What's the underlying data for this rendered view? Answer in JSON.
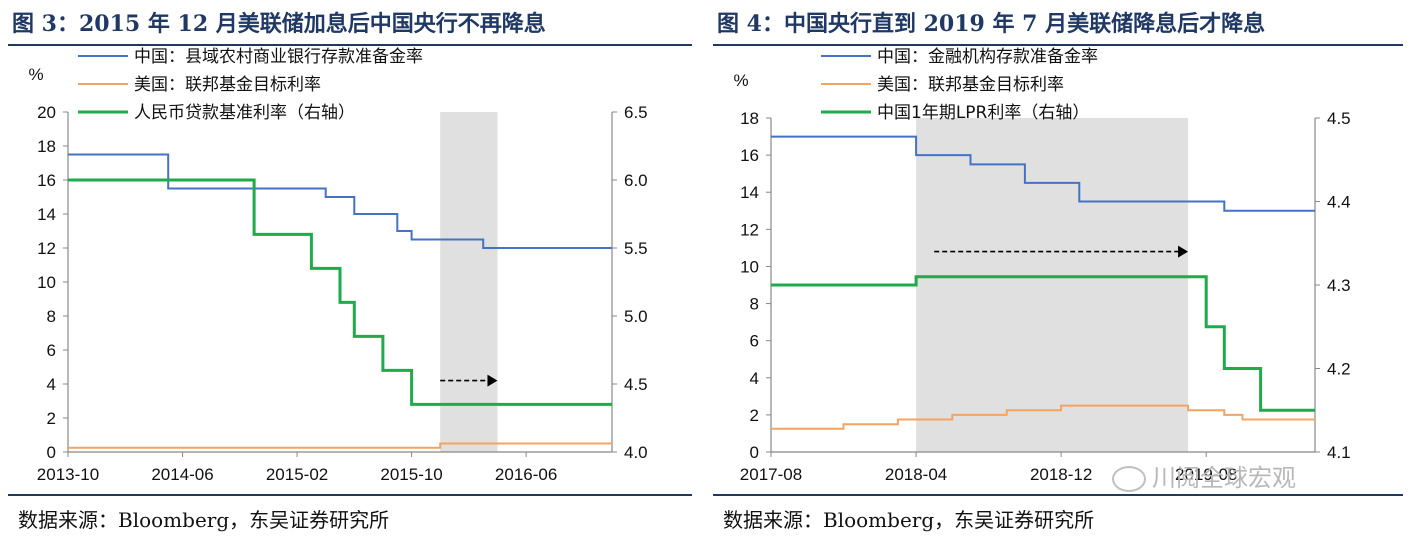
{
  "left": {
    "title": "图 3：2015 年 12 月美联储加息后中国央行不再降息",
    "source": "数据来源：Bloomberg，东吴证券研究所"
  },
  "right": {
    "title": "图 4：中国央行直到 2019 年 7 月美联储降息后才降息",
    "source": "数据来源：Bloomberg，东吴证券研究所"
  },
  "watermark": "川阅全球宏观",
  "colors": {
    "blue": "#4472C4",
    "orange": "#F4A460",
    "green": "#1FAA4B",
    "shade": "#E0E0E0",
    "title": "#1F3864"
  },
  "chart_data": [
    {
      "type": "line",
      "unit_label": "%",
      "x_ticks": [
        "2013-10",
        "2014-06",
        "2015-02",
        "2015-10",
        "2016-06"
      ],
      "x_range": [
        "2013-10",
        "2016-12"
      ],
      "ylim": [
        0,
        20
      ],
      "y_ticks": [
        0,
        2,
        4,
        6,
        8,
        10,
        12,
        14,
        16,
        18,
        20
      ],
      "y2lim": [
        4.0,
        6.5
      ],
      "y2_ticks": [
        "4.0",
        "4.5",
        "5.0",
        "5.5",
        "6.0",
        "6.5"
      ],
      "legend": "top-center",
      "shaded_range": [
        "2015-12",
        "2016-04"
      ],
      "arrow": {
        "from": "2015-12",
        "to": "2016-04",
        "y": 4.2
      },
      "series": [
        {
          "name": "中国：县域农村商业银行存款准备金率",
          "color": "blue",
          "axis": "left",
          "x": [
            "2013-10",
            "2014-05",
            "2015-02",
            "2015-04",
            "2015-06",
            "2015-09",
            "2015-10",
            "2016-03",
            "2016-12"
          ],
          "y": [
            17.5,
            15.5,
            15.5,
            15.0,
            14.0,
            13.0,
            12.5,
            12.0,
            12.0
          ]
        },
        {
          "name": "美国：联邦基金目标利率",
          "color": "orange",
          "axis": "left",
          "x": [
            "2013-10",
            "2015-12",
            "2016-12"
          ],
          "y": [
            0.25,
            0.5,
            0.5
          ]
        },
        {
          "name": "人民币贷款基准利率（右轴）",
          "color": "green",
          "axis": "right",
          "x": [
            "2013-10",
            "2014-11",
            "2015-03",
            "2015-05",
            "2015-06",
            "2015-08",
            "2015-10",
            "2016-12"
          ],
          "y": [
            6.0,
            5.6,
            5.35,
            5.1,
            4.85,
            4.6,
            4.35,
            4.35
          ]
        }
      ]
    },
    {
      "type": "line",
      "unit_label": "%",
      "x_ticks": [
        "2017-08",
        "2018-04",
        "2018-12",
        "2019-08"
      ],
      "x_range": [
        "2017-08",
        "2020-02"
      ],
      "ylim": [
        0,
        18
      ],
      "y_ticks": [
        0,
        2,
        4,
        6,
        8,
        10,
        12,
        14,
        16,
        18
      ],
      "y2lim": [
        4.1,
        4.5
      ],
      "y2_ticks": [
        "4.1",
        "4.2",
        "4.3",
        "4.4",
        "4.5"
      ],
      "legend": "top-center",
      "shaded_range": [
        "2018-04",
        "2019-07"
      ],
      "arrow": {
        "from": "2018-05",
        "to": "2019-07",
        "y": 10.8
      },
      "series": [
        {
          "name": "中国：金融机构存款准备金率",
          "color": "blue",
          "axis": "left",
          "x": [
            "2017-08",
            "2018-04",
            "2018-07",
            "2018-10",
            "2019-01",
            "2019-09",
            "2020-02"
          ],
          "y": [
            17.0,
            16.0,
            15.5,
            14.5,
            13.5,
            13.0,
            13.0
          ]
        },
        {
          "name": "美国：联邦基金目标利率",
          "color": "orange",
          "axis": "left",
          "x": [
            "2017-08",
            "2017-12",
            "2018-03",
            "2018-06",
            "2018-09",
            "2018-12",
            "2019-07",
            "2019-09",
            "2019-10",
            "2020-02"
          ],
          "y": [
            1.25,
            1.5,
            1.75,
            2.0,
            2.25,
            2.5,
            2.25,
            2.0,
            1.75,
            1.75
          ]
        },
        {
          "name": "中国1年期LPR利率（右轴）",
          "color": "green",
          "axis": "right",
          "x": [
            "2017-08",
            "2018-04",
            "2019-08",
            "2019-09",
            "2019-11",
            "2020-02"
          ],
          "y": [
            4.3,
            4.31,
            4.25,
            4.2,
            4.15,
            4.15
          ]
        }
      ]
    }
  ]
}
